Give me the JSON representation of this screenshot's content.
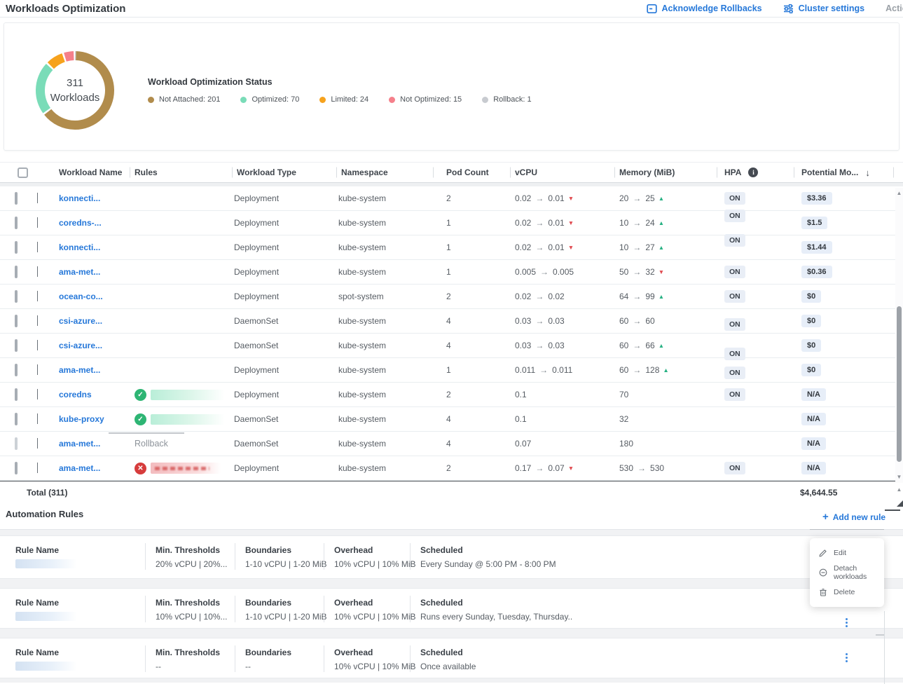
{
  "header": {
    "title": "Workloads Optimization",
    "acknowledge_label": "Acknowledge Rollbacks",
    "cluster_settings_label": "Cluster settings",
    "actions_label": "Action"
  },
  "chart_data": {
    "type": "pie",
    "title": "Workload Optimization Status",
    "center_value": "311",
    "center_label": "Workloads",
    "total": 311,
    "legend_position": "right",
    "segments": [
      {
        "label": "Not Attached",
        "value": 201,
        "color": "#b18c4c"
      },
      {
        "label": "Optimized",
        "value": 70,
        "color": "#7adcb8"
      },
      {
        "label": "Limited",
        "value": 24,
        "color": "#f6a21d"
      },
      {
        "label": "Not Optimized",
        "value": 15,
        "color": "#f5808b"
      },
      {
        "label": "Rollback",
        "value": 1,
        "color": "#c8cbd0"
      }
    ]
  },
  "table": {
    "columns": [
      "Workload Name",
      "Rules",
      "Workload Type",
      "Namespace",
      "Pod Count",
      "vCPU",
      "Memory (MiB)",
      "HPA",
      "Potential Mo..."
    ],
    "rows": [
      {
        "name": "konnecti...",
        "rule": {
          "kind": "none"
        },
        "type": "Deployment",
        "namespace": "kube-system",
        "pods": "2",
        "vcpu": {
          "from": "0.02",
          "to": "0.01",
          "trend": "down"
        },
        "memory": {
          "from": "20",
          "to": "25",
          "trend": "up"
        },
        "hpa": "ON",
        "savings": "$3.36"
      },
      {
        "name": "coredns-...",
        "rule": {
          "kind": "none"
        },
        "type": "Deployment",
        "namespace": "kube-system",
        "pods": "1",
        "vcpu": {
          "from": "0.02",
          "to": "0.01",
          "trend": "down"
        },
        "memory": {
          "from": "10",
          "to": "24",
          "trend": "up"
        },
        "hpa": "ON",
        "savings": "$1.5"
      },
      {
        "name": "konnecti...",
        "rule": {
          "kind": "none"
        },
        "type": "Deployment",
        "namespace": "kube-system",
        "pods": "1",
        "vcpu": {
          "from": "0.02",
          "to": "0.01",
          "trend": "down"
        },
        "memory": {
          "from": "10",
          "to": "27",
          "trend": "up"
        },
        "hpa": "ON",
        "savings": "$1.44"
      },
      {
        "name": "ama-met...",
        "rule": {
          "kind": "none"
        },
        "type": "Deployment",
        "namespace": "kube-system",
        "pods": "1",
        "vcpu": {
          "from": "0.005",
          "to": "0.005",
          "trend": null
        },
        "memory": {
          "from": "50",
          "to": "32",
          "trend": "down"
        },
        "hpa": "ON",
        "savings": "$0.36"
      },
      {
        "name": "ocean-co...",
        "rule": {
          "kind": "none"
        },
        "type": "Deployment",
        "namespace": "spot-system",
        "pods": "2",
        "vcpu": {
          "from": "0.02",
          "to": "0.02",
          "trend": null
        },
        "memory": {
          "from": "64",
          "to": "99",
          "trend": "up"
        },
        "hpa": "ON",
        "savings": "$0"
      },
      {
        "name": "csi-azure...",
        "rule": {
          "kind": "none"
        },
        "type": "DaemonSet",
        "namespace": "kube-system",
        "pods": "4",
        "vcpu": {
          "from": "0.03",
          "to": "0.03",
          "trend": null
        },
        "memory": {
          "from": "60",
          "to": "60",
          "trend": null
        },
        "hpa": "ON",
        "savings": "$0"
      },
      {
        "name": "csi-azure...",
        "rule": {
          "kind": "none"
        },
        "type": "DaemonSet",
        "namespace": "kube-system",
        "pods": "4",
        "vcpu": {
          "from": "0.03",
          "to": "0.03",
          "trend": null
        },
        "memory": {
          "from": "60",
          "to": "66",
          "trend": "up"
        },
        "hpa": "ON",
        "savings": "$0"
      },
      {
        "name": "ama-met...",
        "rule": {
          "kind": "none"
        },
        "type": "Deployment",
        "namespace": "kube-system",
        "pods": "1",
        "vcpu": {
          "from": "0.011",
          "to": "0.011",
          "trend": null
        },
        "memory": {
          "from": "60",
          "to": "128",
          "trend": "up"
        },
        "hpa": "ON",
        "savings": "$0"
      },
      {
        "name": "coredns",
        "rule": {
          "kind": "ok"
        },
        "type": "Deployment",
        "namespace": "kube-system",
        "pods": "2",
        "vcpu": {
          "from": "0.1",
          "to": null,
          "trend": null
        },
        "memory": {
          "from": "70",
          "to": null,
          "trend": null
        },
        "hpa": "ON",
        "savings": "N/A"
      },
      {
        "name": "kube-proxy",
        "rule": {
          "kind": "ok"
        },
        "type": "DaemonSet",
        "namespace": "kube-system",
        "pods": "4",
        "vcpu": {
          "from": "0.1",
          "to": null,
          "trend": null
        },
        "memory": {
          "from": "32",
          "to": null,
          "trend": null
        },
        "hpa": "",
        "savings": "N/A"
      },
      {
        "name": "ama-met...",
        "rule": {
          "kind": "rollback",
          "label": "Rollback"
        },
        "type": "DaemonSet",
        "namespace": "kube-system",
        "pods": "4",
        "vcpu": {
          "from": "0.07",
          "to": null,
          "trend": null
        },
        "memory": {
          "from": "180",
          "to": null,
          "trend": null
        },
        "hpa": "",
        "savings": "N/A"
      },
      {
        "name": "ama-met...",
        "rule": {
          "kind": "error"
        },
        "type": "Deployment",
        "namespace": "kube-system",
        "pods": "2",
        "vcpu": {
          "from": "0.17",
          "to": "0.07",
          "trend": "down"
        },
        "memory": {
          "from": "530",
          "to": "530",
          "trend": null
        },
        "hpa": "ON",
        "savings": "N/A"
      }
    ],
    "total_label": "Total (311)",
    "total_value": "$4,644.55"
  },
  "rules_section": {
    "title": "Automation Rules",
    "add_rule_label": "Add new rule",
    "field_labels": {
      "name": "Rule Name",
      "thresholds": "Min. Thresholds",
      "boundaries": "Boundaries",
      "overhead": "Overhead",
      "scheduled": "Scheduled"
    },
    "rules": [
      {
        "name_redacted": true,
        "thresholds": "20% vCPU | 20%...",
        "boundaries": "1-10 vCPU | 1-20 MiB",
        "overhead": "10% vCPU | 10% MiB",
        "scheduled": "Every Sunday @ 5:00 PM - 8:00 PM"
      },
      {
        "name_redacted": true,
        "thresholds": "10% vCPU | 10%...",
        "boundaries": "1-10 vCPU | 1-20 MiB",
        "overhead": "10% vCPU | 10% MiB",
        "scheduled": "Runs every Sunday, Tuesday, Thursday.."
      },
      {
        "name_redacted": true,
        "thresholds": "--",
        "boundaries": "--",
        "overhead": "10% vCPU | 10% MiB",
        "scheduled": "Once available"
      }
    ]
  },
  "context_menu": {
    "items": [
      {
        "label": "Edit",
        "icon": "edit-icon"
      },
      {
        "label": "Detach workloads",
        "icon": "detach-icon"
      },
      {
        "label": "Delete",
        "icon": "delete-icon"
      }
    ]
  }
}
